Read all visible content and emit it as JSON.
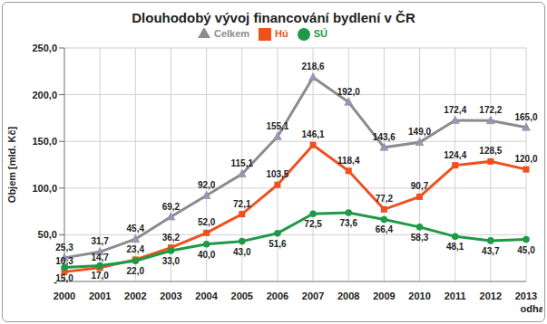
{
  "chart_data": {
    "type": "line",
    "title": "Dlouhodobý vývoj financování bydlení v ČR",
    "y_label": "Objem [mld. Kč]",
    "categories": [
      "2000",
      "2001",
      "2002",
      "2003",
      "2004",
      "2005",
      "2006",
      "2007",
      "2008",
      "2009",
      "2010",
      "2011",
      "2012",
      "2013"
    ],
    "annotations": [
      {
        "text": "odhad",
        "x": "2013"
      }
    ],
    "series": [
      {
        "name": "Hú",
        "color": "#f0501e",
        "marker": "square",
        "values": [
          10.3,
          14.7,
          23.4,
          36.2,
          52.0,
          72.1,
          103.5,
          146.1,
          118.4,
          77.2,
          90.7,
          124.4,
          128.5,
          120.0
        ],
        "value_labels": [
          "10,3",
          "14,7",
          "23,4",
          "36,2",
          "52,0",
          "72,1",
          "103,5",
          "146,1",
          "118,4",
          "77,2",
          "90,7",
          "124,4",
          "128,5",
          "120,0"
        ]
      },
      {
        "name": "SÚ",
        "color": "#1e9a46",
        "marker": "circle",
        "values": [
          15.0,
          17.0,
          22.0,
          33.0,
          40.0,
          43.0,
          51.6,
          72.5,
          73.6,
          66.4,
          58.3,
          48.1,
          43.7,
          45.0
        ],
        "value_labels": [
          "15,0",
          "17,0",
          "22,0",
          "33,0",
          "40,0",
          "43,0",
          "51,6",
          "72,5",
          "73,6",
          "66,4",
          "58,3",
          "48,1",
          "43,7",
          "45,0"
        ]
      },
      {
        "name": "Celkem",
        "color": "#8c8c8c",
        "marker": "triangle",
        "values": [
          25.3,
          31.7,
          45.4,
          69.2,
          92.0,
          115.1,
          155.1,
          218.6,
          192.0,
          143.6,
          149.0,
          172.4,
          172.2,
          165.0
        ],
        "value_labels": [
          "25,3",
          "31,7",
          "45,4",
          "69,2",
          "92,0",
          "115,1",
          "155,1",
          "218,6",
          "192,0",
          "143,6",
          "149,0",
          "172,4",
          "172,2",
          "165,0"
        ]
      }
    ],
    "ylim": [
      0,
      250
    ],
    "yticks": [
      {
        "value": 0,
        "label": "-"
      },
      {
        "value": 50,
        "label": "50,0"
      },
      {
        "value": 100,
        "label": "100,0"
      },
      {
        "value": 150,
        "label": "150,0"
      },
      {
        "value": 200,
        "label": "200,0"
      },
      {
        "value": 250,
        "label": "250,0"
      }
    ],
    "grid": true,
    "legend": "top",
    "data_labels": true
  }
}
